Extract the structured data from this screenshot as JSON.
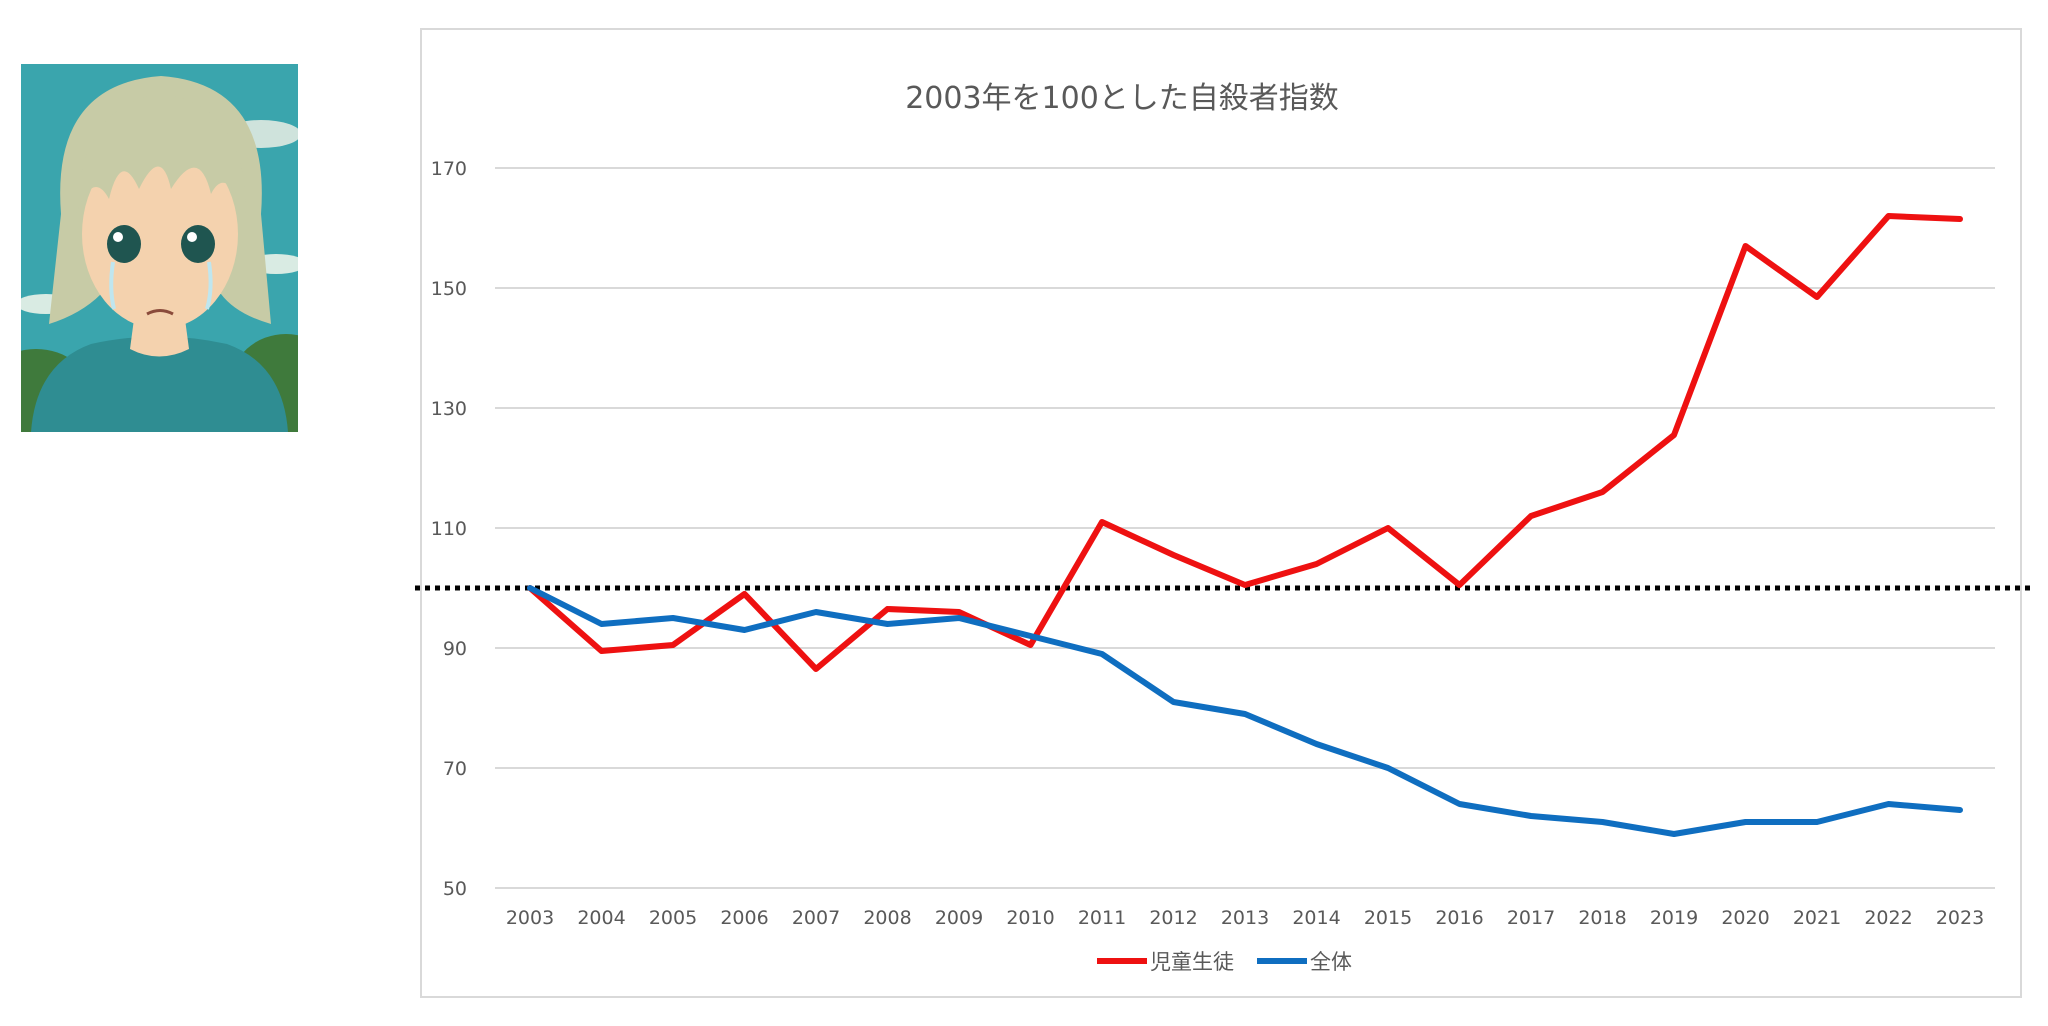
{
  "illustration": {
    "icon": "crying-anime-girl-illustration",
    "colors": {
      "sky": "#3aa5ad",
      "hair": "#c7cba6",
      "skin": "#f4d2ae",
      "shirt": "#2f8d92",
      "trees": "#3f7a3c"
    }
  },
  "chart_data": {
    "type": "line",
    "title": "2003年を100とした自殺者指数",
    "xlabel": "",
    "ylabel": "",
    "categories": [
      "2003",
      "2004",
      "2005",
      "2006",
      "2007",
      "2008",
      "2009",
      "2010",
      "2011",
      "2012",
      "2013",
      "2014",
      "2015",
      "2016",
      "2017",
      "2018",
      "2019",
      "2020",
      "2021",
      "2022",
      "2023"
    ],
    "ylim": [
      50,
      178
    ],
    "y_ticks": [
      "50",
      "70",
      "90",
      "110",
      "130",
      "150",
      "170"
    ],
    "grid": true,
    "reference_line": {
      "value": 100,
      "style": "dotted",
      "color": "#000000"
    },
    "legend_position": "bottom",
    "series": [
      {
        "name": "児童生徒",
        "color": "#ee1111",
        "values": [
          100,
          89.5,
          90.5,
          99,
          86.5,
          96.5,
          96,
          90.5,
          111,
          105.5,
          100.5,
          104,
          110,
          100.5,
          112,
          116,
          125.5,
          157,
          148.5,
          162,
          161.5
        ]
      },
      {
        "name": "全体",
        "color": "#0f6ec0",
        "values": [
          100,
          94,
          95,
          93,
          96,
          94,
          95,
          92,
          89,
          81,
          79,
          74,
          70,
          64,
          62,
          61,
          59,
          61,
          61,
          64,
          63
        ]
      }
    ]
  }
}
